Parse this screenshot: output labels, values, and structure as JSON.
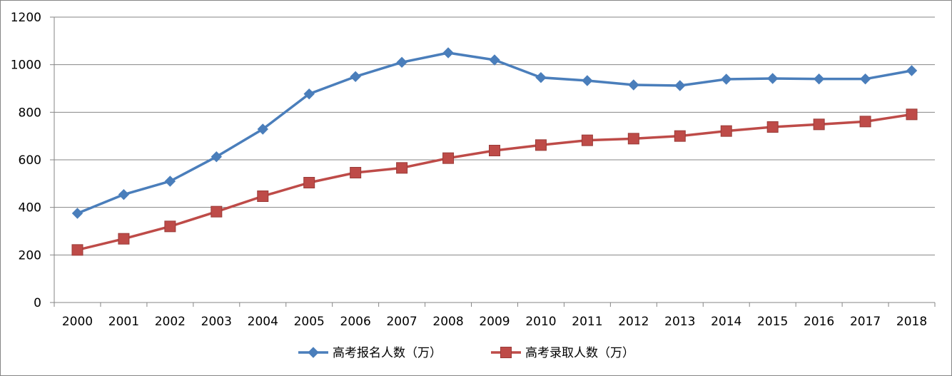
{
  "chart_data": {
    "type": "line",
    "title": "",
    "xlabel": "",
    "ylabel": "",
    "ylim": [
      0,
      1200
    ],
    "yticks": [
      0,
      200,
      400,
      600,
      800,
      1000,
      1200
    ],
    "grid": true,
    "legend_position": "bottom",
    "categories": [
      "2000",
      "2001",
      "2002",
      "2003",
      "2004",
      "2005",
      "2006",
      "2007",
      "2008",
      "2009",
      "2010",
      "2011",
      "2012",
      "2013",
      "2014",
      "2015",
      "2016",
      "2017",
      "2018"
    ],
    "series": [
      {
        "name": "高考报名人数（万）",
        "color": "#4A7EBB",
        "marker": "diamond",
        "values": [
          375,
          454,
          510,
          613,
          729,
          877,
          950,
          1010,
          1050,
          1020,
          946,
          933,
          915,
          912,
          939,
          942,
          940,
          940,
          975
        ]
      },
      {
        "name": "高考录取人数（万）",
        "color": "#BE4B48",
        "marker": "square",
        "values": [
          221,
          268,
          320,
          382,
          447,
          504,
          546,
          566,
          607,
          639,
          662,
          682,
          689,
          700,
          721,
          738,
          749,
          761,
          791
        ]
      }
    ]
  }
}
